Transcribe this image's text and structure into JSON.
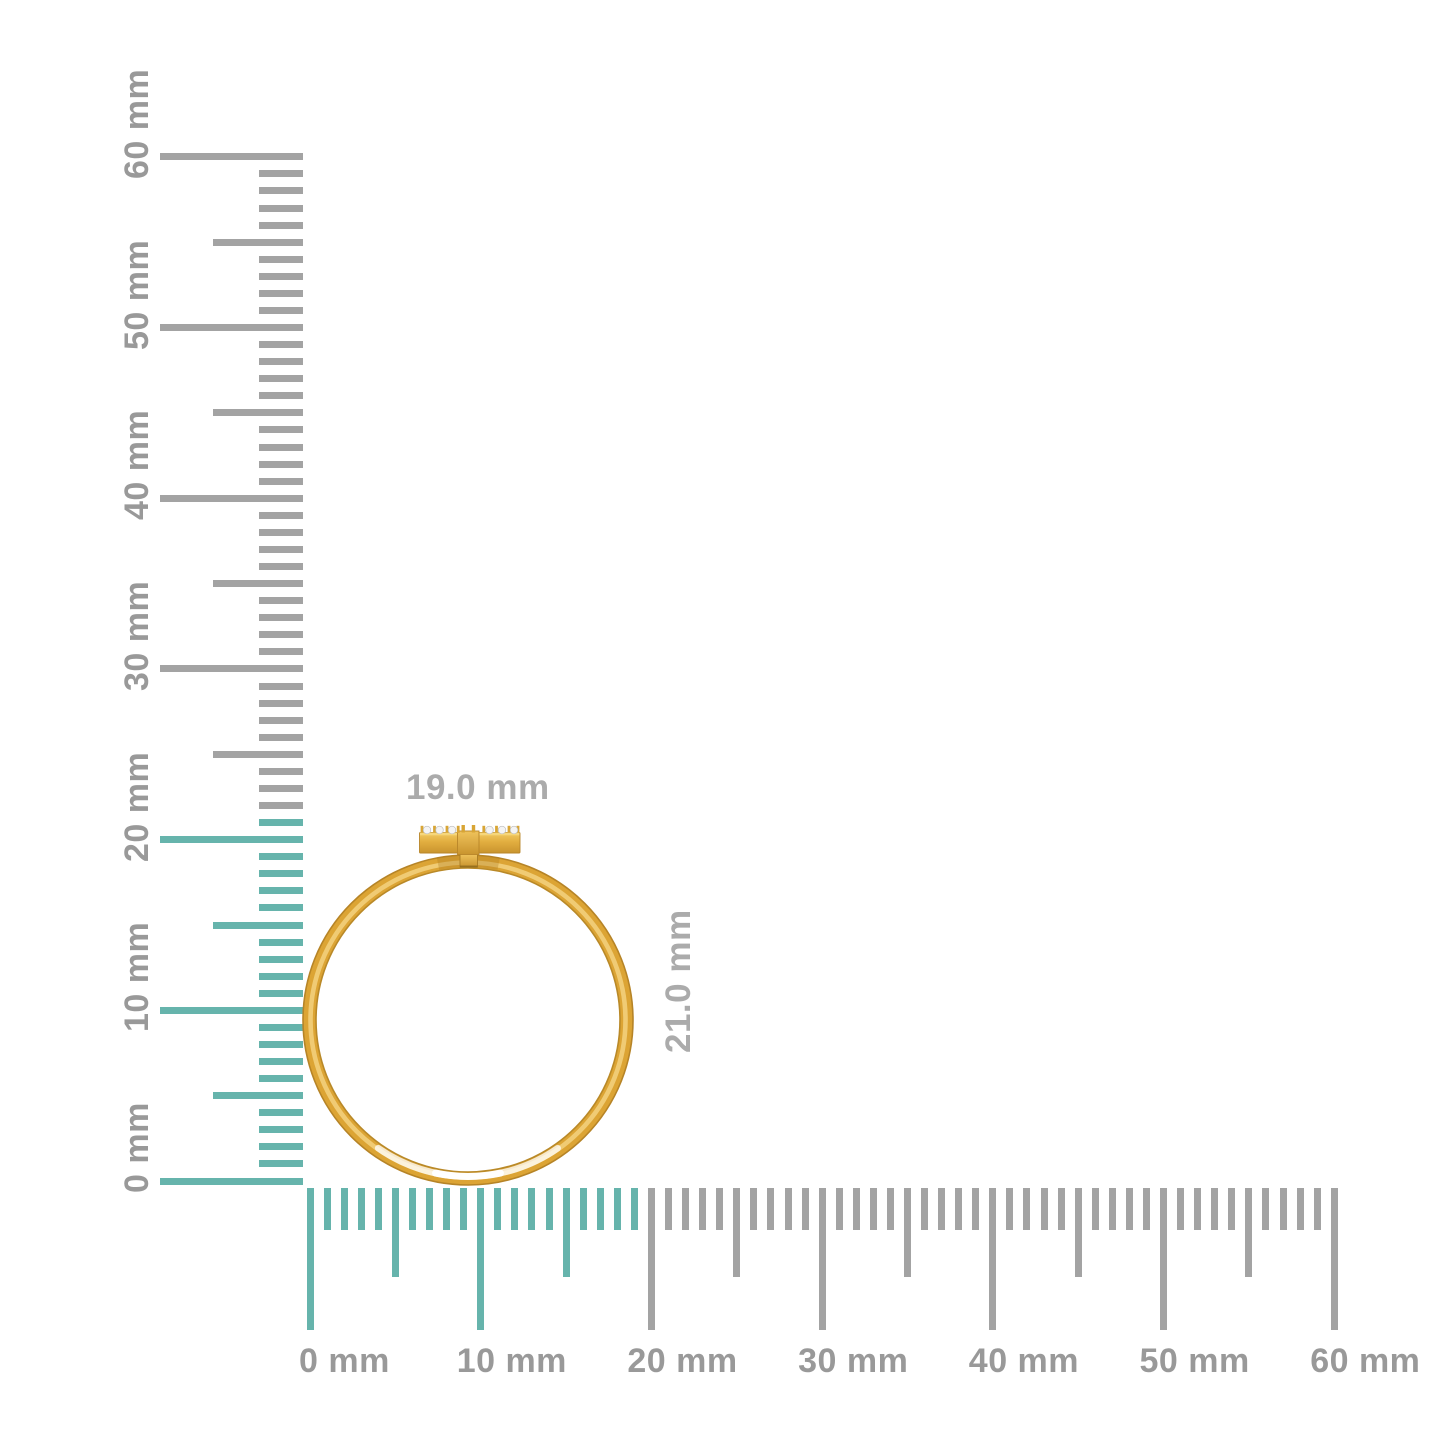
{
  "figure": {
    "background": "#ffffff",
    "unit": "mm"
  },
  "colors": {
    "highlight_teal": "#66B4AC",
    "tick_gray": "#A3A3A3",
    "ruler_label_gray": "#999999",
    "dimension_label_gray": "#ABABAB",
    "gold_base": "#DCA434",
    "gold_light": "#F2CF7B",
    "gold_dark": "#B68427",
    "diamond_white": "#F4F4F4"
  },
  "vertical_ruler": {
    "min_mm": 0,
    "max_mm": 60,
    "step_mm": 1,
    "labels": [
      "0 mm",
      "10 mm",
      "20 mm",
      "30 mm",
      "40 mm",
      "50 mm",
      "60 mm"
    ],
    "highlight_extent_mm": 21
  },
  "horizontal_ruler": {
    "min_mm": 0,
    "max_mm": 60,
    "step_mm": 1,
    "labels": [
      "0 mm",
      "10 mm",
      "20 mm",
      "30 mm",
      "40 mm",
      "50 mm",
      "60 mm"
    ],
    "highlight_extent_mm": 19
  },
  "ring": {
    "width_label": "19.0 mm",
    "height_label": "21.0 mm",
    "width_mm": 19.0,
    "height_mm": 21.0,
    "stone_count": 6
  }
}
